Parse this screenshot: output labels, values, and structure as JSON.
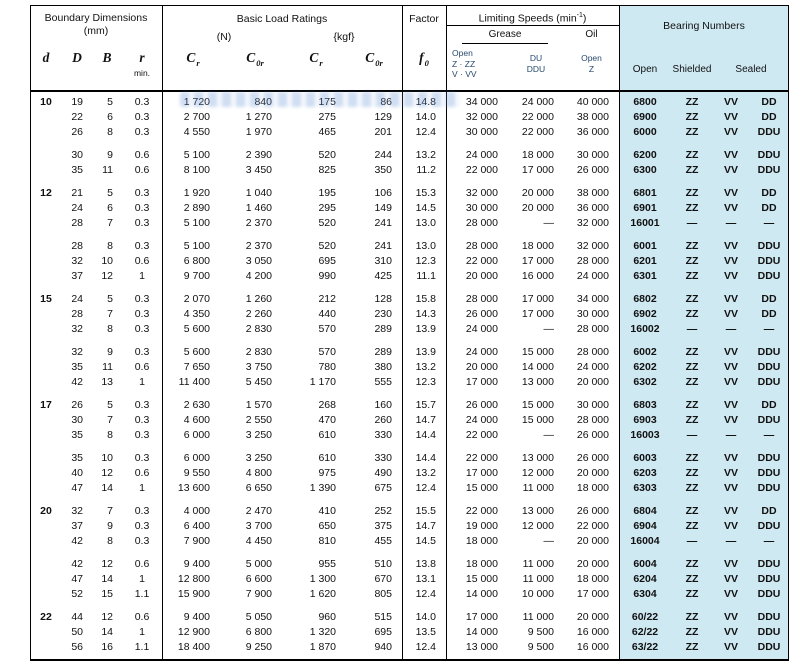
{
  "colors": {
    "blue_bg": "#cfe9f3",
    "line": "#000000",
    "navy": "#27496d"
  },
  "header": {
    "boundary_title": "Boundary Dimensions",
    "boundary_unit": "(mm)",
    "sym_d": "d",
    "sym_D": "D",
    "sym_B": "B",
    "sym_r": "r",
    "r_min": "min.",
    "load_title": "Basic Load Ratings",
    "load_n": "(N)",
    "load_kgf": "{kgf}",
    "sym_C": "C",
    "sub_r": "r",
    "sub_0r": "0r",
    "factor_title": "Factor",
    "sym_f": "f",
    "sub_0": "0",
    "speeds_title_pre": "Limiting Speeds (min",
    "speeds_title_sup": "-1",
    "speeds_title_post": ")",
    "grease": "Grease",
    "oil": "Oil",
    "speed_col1": [
      "Open",
      "Z · ZZ",
      "V · VV"
    ],
    "speed_col2": [
      "DU",
      "DDU"
    ],
    "speed_col3": [
      "Open",
      "Z"
    ],
    "bearing_title": "Bearing Numbers",
    "bearing_cols": [
      "Open",
      "Shielded",
      "Sealed"
    ]
  },
  "blocks": [
    [
      [
        "10",
        "19",
        "5",
        "0.3",
        "1 720",
        "840",
        "175",
        "86",
        "14.8",
        "34 000",
        "24 000",
        "40 000",
        "6800",
        "ZZ",
        "VV",
        "DD"
      ],
      [
        "",
        "22",
        "6",
        "0.3",
        "2 700",
        "1 270",
        "275",
        "129",
        "14.0",
        "32 000",
        "22 000",
        "38 000",
        "6900",
        "ZZ",
        "VV",
        "DD"
      ],
      [
        "",
        "26",
        "8",
        "0.3",
        "4 550",
        "1 970",
        "465",
        "201",
        "12.4",
        "30 000",
        "22 000",
        "36 000",
        "6000",
        "ZZ",
        "VV",
        "DDU"
      ]
    ],
    [
      [
        "",
        "30",
        "9",
        "0.6",
        "5 100",
        "2 390",
        "520",
        "244",
        "13.2",
        "24 000",
        "18 000",
        "30 000",
        "6200",
        "ZZ",
        "VV",
        "DDU"
      ],
      [
        "",
        "35",
        "11",
        "0.6",
        "8 100",
        "3 450",
        "825",
        "350",
        "11.2",
        "22 000",
        "17 000",
        "26 000",
        "6300",
        "ZZ",
        "VV",
        "DDU"
      ]
    ],
    [
      [
        "12",
        "21",
        "5",
        "0.3",
        "1 920",
        "1 040",
        "195",
        "106",
        "15.3",
        "32 000",
        "20 000",
        "38 000",
        "6801",
        "ZZ",
        "VV",
        "DD"
      ],
      [
        "",
        "24",
        "6",
        "0.3",
        "2 890",
        "1 460",
        "295",
        "149",
        "14.5",
        "30 000",
        "20 000",
        "36 000",
        "6901",
        "ZZ",
        "VV",
        "DD"
      ],
      [
        "",
        "28",
        "7",
        "0.3",
        "5 100",
        "2 370",
        "520",
        "241",
        "13.0",
        "28 000",
        "—",
        "32 000",
        "16001",
        "—",
        "—",
        "—"
      ]
    ],
    [
      [
        "",
        "28",
        "8",
        "0.3",
        "5 100",
        "2 370",
        "520",
        "241",
        "13.0",
        "28 000",
        "18 000",
        "32 000",
        "6001",
        "ZZ",
        "VV",
        "DDU"
      ],
      [
        "",
        "32",
        "10",
        "0.6",
        "6 800",
        "3 050",
        "695",
        "310",
        "12.3",
        "22 000",
        "17 000",
        "28 000",
        "6201",
        "ZZ",
        "VV",
        "DDU"
      ],
      [
        "",
        "37",
        "12",
        "1",
        "9 700",
        "4 200",
        "990",
        "425",
        "11.1",
        "20 000",
        "16 000",
        "24 000",
        "6301",
        "ZZ",
        "VV",
        "DDU"
      ]
    ],
    [
      [
        "15",
        "24",
        "5",
        "0.3",
        "2 070",
        "1 260",
        "212",
        "128",
        "15.8",
        "28 000",
        "17 000",
        "34 000",
        "6802",
        "ZZ",
        "VV",
        "DD"
      ],
      [
        "",
        "28",
        "7",
        "0.3",
        "4 350",
        "2 260",
        "440",
        "230",
        "14.3",
        "26 000",
        "17 000",
        "30 000",
        "6902",
        "ZZ",
        "VV",
        "DD"
      ],
      [
        "",
        "32",
        "8",
        "0.3",
        "5 600",
        "2 830",
        "570",
        "289",
        "13.9",
        "24 000",
        "—",
        "28 000",
        "16002",
        "—",
        "—",
        "—"
      ]
    ],
    [
      [
        "",
        "32",
        "9",
        "0.3",
        "5 600",
        "2 830",
        "570",
        "289",
        "13.9",
        "24 000",
        "15 000",
        "28 000",
        "6002",
        "ZZ",
        "VV",
        "DDU"
      ],
      [
        "",
        "35",
        "11",
        "0.6",
        "7 650",
        "3 750",
        "780",
        "380",
        "13.2",
        "20 000",
        "14 000",
        "24 000",
        "6202",
        "ZZ",
        "VV",
        "DDU"
      ],
      [
        "",
        "42",
        "13",
        "1",
        "11 400",
        "5 450",
        "1 170",
        "555",
        "12.3",
        "17 000",
        "13 000",
        "20 000",
        "6302",
        "ZZ",
        "VV",
        "DDU"
      ]
    ],
    [
      [
        "17",
        "26",
        "5",
        "0.3",
        "2 630",
        "1 570",
        "268",
        "160",
        "15.7",
        "26 000",
        "15 000",
        "30 000",
        "6803",
        "ZZ",
        "VV",
        "DD"
      ],
      [
        "",
        "30",
        "7",
        "0.3",
        "4 600",
        "2 550",
        "470",
        "260",
        "14.7",
        "24 000",
        "15 000",
        "28 000",
        "6903",
        "ZZ",
        "VV",
        "DDU"
      ],
      [
        "",
        "35",
        "8",
        "0.3",
        "6 000",
        "3 250",
        "610",
        "330",
        "14.4",
        "22 000",
        "—",
        "26 000",
        "16003",
        "—",
        "—",
        "—"
      ]
    ],
    [
      [
        "",
        "35",
        "10",
        "0.3",
        "6 000",
        "3 250",
        "610",
        "330",
        "14.4",
        "22 000",
        "13 000",
        "26 000",
        "6003",
        "ZZ",
        "VV",
        "DDU"
      ],
      [
        "",
        "40",
        "12",
        "0.6",
        "9 550",
        "4 800",
        "975",
        "490",
        "13.2",
        "17 000",
        "12 000",
        "20 000",
        "6203",
        "ZZ",
        "VV",
        "DDU"
      ],
      [
        "",
        "47",
        "14",
        "1",
        "13 600",
        "6 650",
        "1 390",
        "675",
        "12.4",
        "15 000",
        "11 000",
        "18 000",
        "6303",
        "ZZ",
        "VV",
        "DDU"
      ]
    ],
    [
      [
        "20",
        "32",
        "7",
        "0.3",
        "4 000",
        "2 470",
        "410",
        "252",
        "15.5",
        "22 000",
        "13 000",
        "26 000",
        "6804",
        "ZZ",
        "VV",
        "DD"
      ],
      [
        "",
        "37",
        "9",
        "0.3",
        "6 400",
        "3 700",
        "650",
        "375",
        "14.7",
        "19 000",
        "12 000",
        "22 000",
        "6904",
        "ZZ",
        "VV",
        "DDU"
      ],
      [
        "",
        "42",
        "8",
        "0.3",
        "7 900",
        "4 450",
        "810",
        "455",
        "14.5",
        "18 000",
        "—",
        "20 000",
        "16004",
        "—",
        "—",
        "—"
      ]
    ],
    [
      [
        "",
        "42",
        "12",
        "0.6",
        "9 400",
        "5 000",
        "955",
        "510",
        "13.8",
        "18 000",
        "11 000",
        "20 000",
        "6004",
        "ZZ",
        "VV",
        "DDU"
      ],
      [
        "",
        "47",
        "14",
        "1",
        "12 800",
        "6 600",
        "1 300",
        "670",
        "13.1",
        "15 000",
        "11 000",
        "18 000",
        "6204",
        "ZZ",
        "VV",
        "DDU"
      ],
      [
        "",
        "52",
        "15",
        "1.1",
        "15 900",
        "7 900",
        "1 620",
        "805",
        "12.4",
        "14 000",
        "10 000",
        "17 000",
        "6304",
        "ZZ",
        "VV",
        "DDU"
      ]
    ],
    [
      [
        "22",
        "44",
        "12",
        "0.6",
        "9 400",
        "5 050",
        "960",
        "515",
        "14.0",
        "17 000",
        "11 000",
        "20 000",
        "60/22",
        "ZZ",
        "VV",
        "DDU"
      ],
      [
        "",
        "50",
        "14",
        "1",
        "12 900",
        "6 800",
        "1 320",
        "695",
        "13.5",
        "14 000",
        "9 500",
        "16 000",
        "62/22",
        "ZZ",
        "VV",
        "DDU"
      ],
      [
        "",
        "56",
        "16",
        "1.1",
        "18 400",
        "9 250",
        "1 870",
        "940",
        "12.4",
        "13 000",
        "9 500",
        "16 000",
        "63/22",
        "ZZ",
        "VV",
        "DDU"
      ]
    ]
  ]
}
